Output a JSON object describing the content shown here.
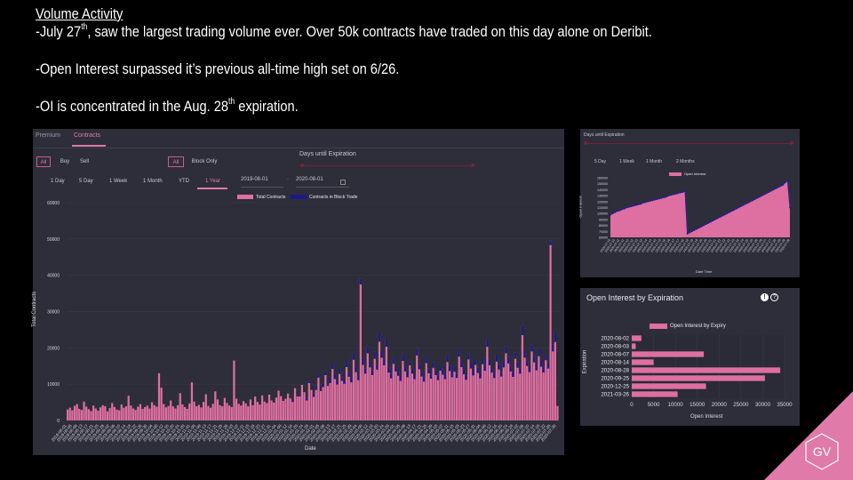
{
  "slide": {
    "heading": "Volume Activity",
    "line1_a": "-July 27",
    "line1_sup": "th",
    "line1_b": ", saw the largest trading volume ever. Over 50k contracts have traded on this day alone on Deribit.",
    "line2": "-Open Interest surpassed it’s previous all-time high set on 6/26.",
    "line3_a": "-OI is concentrated in the Aug. 28",
    "line3_sup": "th",
    "line3_b": " expiration."
  },
  "volume_panel": {
    "tabs": [
      "Premium",
      "Contracts"
    ],
    "active_tab": "Contracts",
    "side_buttons": [
      "All",
      "Buy",
      "Sell"
    ],
    "trade_buttons": [
      "All",
      "Block Only"
    ],
    "range_buttons": [
      "1 Day",
      "5 Day",
      "1 Week",
      "1 Month",
      "YTD",
      "1 Year"
    ],
    "active_range": "1 Year",
    "date_from": "2019-08-01",
    "date_to": "2020-08-01",
    "date_separator": "-",
    "slider_label": "Days until Expiration",
    "legend": [
      "Total Contracts",
      "Contracts in Block Trade"
    ],
    "ylabel": "Total Contracts",
    "xlabel": "Date",
    "colors": {
      "total": "#de6fa1",
      "block": "#1c1a8a"
    }
  },
  "oi_panel": {
    "slider_label": "Days until Expiration",
    "range_buttons": [
      "5 Day",
      "1 Week",
      "1 Month",
      "2 Months"
    ],
    "legend": "Open Interest",
    "ylabel": "Open Interest",
    "xlabel": "Date Time"
  },
  "expiry_panel": {
    "title": "Open Interest by Expiration",
    "info_icon": "!",
    "help_icon": "?",
    "legend": "Open Interest by Expiry",
    "ylabel": "Expiration",
    "xlabel": "Open Interest"
  },
  "logo": {
    "text": "GV",
    "color": "#e07aa8"
  },
  "chart_data": [
    {
      "type": "bar",
      "title": "",
      "xlabel": "Date",
      "ylabel": "Total Contracts",
      "ylim": [
        0,
        60000
      ],
      "yticks": [
        0,
        10000,
        20000,
        30000,
        40000,
        50000,
        60000
      ],
      "x_start": "2019-08-01",
      "x_end": "2020-08-01",
      "series": [
        {
          "name": "Total Contracts",
          "values": [
            3000,
            3500,
            2800,
            4000,
            4500,
            3200,
            2900,
            5200,
            3800,
            3100,
            2600,
            4100,
            3300,
            2700,
            3600,
            4200,
            3900,
            2500,
            3400,
            4800,
            3700,
            3000,
            2800,
            4400,
            3500,
            3900,
            6800,
            4100,
            3300,
            2900,
            3800,
            4500,
            3200,
            3700,
            4100,
            3300,
            5000,
            4200,
            3800,
            13000,
            9000,
            4500,
            3600,
            4000,
            5500,
            3900,
            3300,
            4200,
            7500,
            4400,
            3700,
            3200,
            4700,
            10500,
            5200,
            3900,
            4300,
            3600,
            5100,
            7200,
            4000,
            3500,
            4600,
            8000,
            5800,
            4200,
            3900,
            6200,
            4800,
            4100,
            3700,
            16500,
            6000,
            4600,
            4100,
            5300,
            4700,
            3900,
            5800,
            4200,
            6600,
            5100,
            4400,
            6900,
            5200,
            4800,
            7100,
            5500,
            4900,
            6300,
            8200,
            6700,
            5400,
            6000,
            7400,
            6100,
            5600,
            8900,
            6600,
            7200,
            9800,
            7800,
            6300,
            11000,
            8400,
            7400,
            9600,
            12500,
            8100,
            10200,
            13800,
            9500,
            11400,
            15800,
            12600,
            10800,
            14200,
            12100,
            10900,
            16400,
            13300,
            11500,
            18500,
            14800,
            12200,
            39000,
            17000,
            14300,
            20500,
            16200,
            13800,
            18900,
            15500,
            24000,
            19200,
            16800,
            22500,
            14600,
            12800,
            17300,
            15000,
            13600,
            12000,
            18200,
            14900,
            13100,
            16800,
            14200,
            12500,
            19800,
            15600,
            13400,
            11800,
            17500,
            14400,
            12700,
            16100,
            13800,
            12300,
            15200,
            14000,
            12600,
            17900,
            15100,
            13200,
            14800,
            12900,
            19500,
            16300,
            14100,
            12400,
            18600,
            15800,
            13700,
            16900,
            14500,
            12800,
            17200,
            15200,
            22500,
            16800,
            14600,
            13000,
            18000,
            15500,
            13400,
            16200,
            20500,
            17400,
            15000,
            13300,
            18800,
            16100,
            14300,
            26000,
            19200,
            16600,
            14700,
            21000,
            17800,
            15300,
            19600,
            16400,
            14600,
            18400,
            15900,
            49500,
            21000,
            24000,
            4000
          ]
        },
        {
          "name": "Contracts in Block Trade",
          "values": [
            0,
            0,
            0,
            0,
            0,
            0,
            0,
            0,
            0,
            0,
            0,
            0,
            0,
            0,
            0,
            0,
            0,
            0,
            0,
            0,
            0,
            0,
            0,
            0,
            0,
            0,
            0,
            0,
            0,
            0,
            0,
            0,
            0,
            0,
            0,
            0,
            0,
            0,
            0,
            0,
            0,
            0,
            0,
            0,
            0,
            0,
            0,
            0,
            0,
            0,
            0,
            0,
            0,
            0,
            0,
            0,
            0,
            0,
            0,
            0,
            0,
            0,
            0,
            0,
            0,
            0,
            0,
            0,
            0,
            0,
            0,
            0,
            0,
            0,
            0,
            0,
            0,
            0,
            0,
            0,
            0,
            0,
            0,
            0,
            0,
            0,
            0,
            0,
            0,
            0,
            0,
            0,
            0,
            0,
            0,
            0,
            500,
            0,
            0,
            600,
            0,
            0,
            800,
            700,
            0,
            900,
            1200,
            700,
            0,
            1000,
            1300,
            0,
            1100,
            1600,
            1200,
            900,
            1400,
            1200,
            800,
            1700,
            1300,
            1000,
            1800,
            1500,
            1100,
            1500,
            1700,
            1400,
            2000,
            1600,
            1300,
            1900,
            1500,
            2300,
            1900,
            1600,
            2200,
            1400,
            1200,
            1700,
            1500,
            1300,
            1100,
            1800,
            1400,
            1200,
            1600,
            1300,
            1100,
            1900,
            1500,
            1300,
            1100,
            1700,
            1400,
            1200,
            1600,
            1300,
            1200,
            1500,
            1400,
            1200,
            1800,
            1500,
            1300,
            1400,
            1200,
            1900,
            1600,
            1400,
            1200,
            1800,
            1500,
            1300,
            1600,
            1400,
            1200,
            1700,
            1500,
            2200,
            1600,
            1400,
            1300,
            1800,
            1500,
            1300,
            1600,
            2000,
            1700,
            1500,
            1300,
            1800,
            1600,
            1400,
            2500,
            1900,
            1600,
            1400,
            2000,
            1800,
            1500,
            1900,
            1600,
            1400,
            1800,
            1600,
            1200,
            2000,
            2400,
            0
          ]
        }
      ]
    },
    {
      "type": "area",
      "title": "",
      "xlabel": "Date Time",
      "ylabel": "Open Interest",
      "ylim": [
        60000,
        160000
      ],
      "yticks": [
        60000,
        70000,
        80000,
        90000,
        100000,
        110000,
        120000,
        130000,
        140000,
        150000,
        160000
      ],
      "series": [
        {
          "name": "Open Interest",
          "values": [
            98000,
            100000,
            102000,
            104000,
            105000,
            107000,
            108000,
            110000,
            111000,
            112000,
            113000,
            114000,
            115000,
            116000,
            118000,
            119000,
            120000,
            121000,
            122000,
            123000,
            124000,
            125000,
            126000,
            127000,
            128000,
            130000,
            131000,
            132000,
            133000,
            134000,
            135000,
            136000,
            137000,
            66000,
            68000,
            70000,
            72000,
            74000,
            76000,
            78000,
            80000,
            82000,
            84000,
            86000,
            88000,
            90000,
            92000,
            94000,
            96000,
            98000,
            100000,
            102000,
            104000,
            106000,
            108000,
            110000,
            112000,
            114000,
            116000,
            118000,
            120000,
            122000,
            124000,
            126000,
            128000,
            130000,
            132000,
            134000,
            136000,
            138000,
            140000,
            142000,
            144000,
            146000,
            148000,
            152000,
            155000,
            110000
          ]
        }
      ]
    },
    {
      "type": "bar",
      "orientation": "horizontal",
      "title": "",
      "xlabel": "Open Interest",
      "ylabel": "Expiration",
      "xlim": [
        0,
        35000
      ],
      "xticks": [
        0,
        5000,
        10000,
        15000,
        20000,
        25000,
        30000,
        35000
      ],
      "categories": [
        "2020-08-02",
        "2020-08-03",
        "2020-08-07",
        "2020-08-14",
        "2020-08-28",
        "2020-09-25",
        "2020-12-25",
        "2021-03-26"
      ],
      "series": [
        {
          "name": "Open Interest by Expiry",
          "values": [
            2200,
            900,
            16500,
            5000,
            34000,
            30500,
            17000,
            10500
          ]
        }
      ]
    }
  ]
}
